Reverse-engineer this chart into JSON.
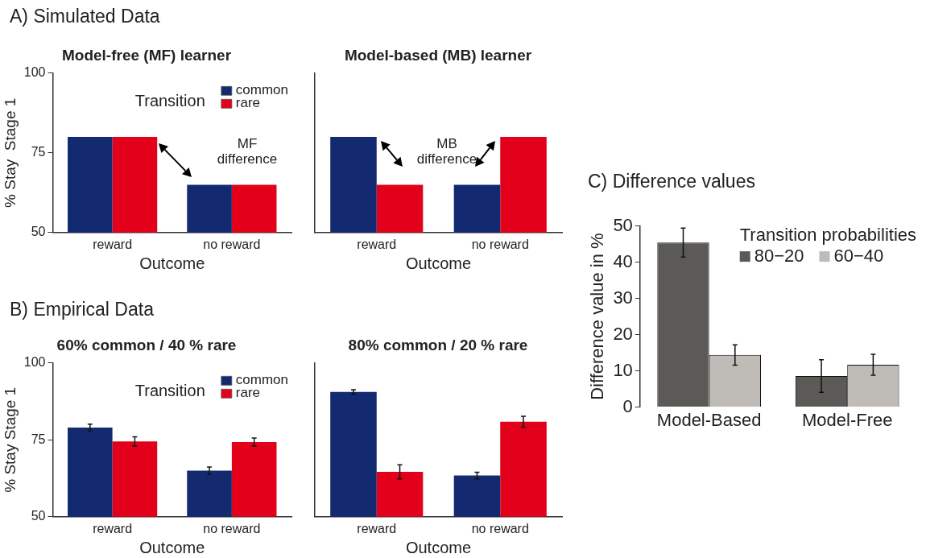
{
  "chart_data": [
    {
      "type": "bar",
      "title": "Model-free (MF) learner",
      "xlabel": "Outcome",
      "ylabel": "% Stay  Stage 1",
      "legend_title": "Transition",
      "annotations": [
        "A) Simulated Data",
        "MF difference"
      ],
      "categories": [
        "reward",
        "no reward"
      ],
      "series": [
        {
          "name": "common",
          "color": "#142a70",
          "values": [
            80,
            65
          ]
        },
        {
          "name": "rare",
          "color": "#e2001a",
          "values": [
            80,
            65
          ]
        }
      ],
      "ylim": [
        50,
        100
      ],
      "yticks": [
        50,
        75,
        100
      ],
      "grid": false,
      "legend": "top right"
    },
    {
      "type": "bar",
      "title": "Model-based (MB) learner",
      "xlabel": "Outcome",
      "annotations": [
        "MB difference"
      ],
      "categories": [
        "reward",
        "no reward"
      ],
      "series": [
        {
          "color": "#142a70",
          "values": [
            80,
            65
          ]
        },
        {
          "color": "#e2001a",
          "values": [
            65,
            80
          ]
        }
      ],
      "ylim": [
        50,
        100
      ],
      "yticks": [
        50,
        75,
        100
      ],
      "grid": false,
      "tick_labels": "x"
    },
    {
      "type": "bar",
      "title": "60% common / 40 % rare",
      "xlabel": "Outcome",
      "ylabel": "% Stay Stage 1",
      "legend_title": "Transition",
      "annotations": [
        "B) Empirical Data"
      ],
      "categories": [
        "reward",
        "no reward"
      ],
      "series": [
        {
          "name": "common",
          "color": "#142a70",
          "values": [
            79,
            65
          ],
          "errors": [
            1.1,
            1.2
          ]
        },
        {
          "name": "rare",
          "color": "#e2001a",
          "values": [
            74.5,
            74.3
          ],
          "errors": [
            1.5,
            1.3
          ]
        }
      ],
      "ylim": [
        50,
        100
      ],
      "yticks": [
        50,
        75,
        100
      ],
      "grid": false,
      "legend": "top right"
    },
    {
      "type": "bar",
      "title": "80% common / 20 % rare",
      "xlabel": "Outcome",
      "categories": [
        "reward",
        "no reward"
      ],
      "series": [
        {
          "color": "#142a70",
          "values": [
            90.6,
            63.4
          ],
          "errors": [
            0.7,
            1.1
          ]
        },
        {
          "color": "#e2001a",
          "values": [
            64.6,
            80.9
          ],
          "errors": [
            2.3,
            1.8
          ]
        }
      ],
      "ylim": [
        50,
        100
      ],
      "yticks": [
        50,
        75,
        100
      ],
      "grid": false,
      "tick_labels": "x"
    },
    {
      "type": "bar",
      "title": "C) Difference values",
      "ylabel": "Difference value in %",
      "legend_title": "Transition probabilities",
      "categories": [
        "Model-Based",
        "Model-Free"
      ],
      "series": [
        {
          "name": "80−20",
          "color": "#5b5a56",
          "values": [
            45.4,
            8.6
          ],
          "errors": [
            4.0,
            4.5
          ]
        },
        {
          "name": "60−40",
          "color": "#bfbcb8",
          "values": [
            14.4,
            11.7
          ],
          "errors": [
            2.8,
            2.9
          ]
        }
      ],
      "ylim": [
        0,
        50
      ],
      "yticks": [
        0,
        10,
        20,
        30,
        40,
        50
      ],
      "grid": false,
      "legend": "top right"
    }
  ]
}
